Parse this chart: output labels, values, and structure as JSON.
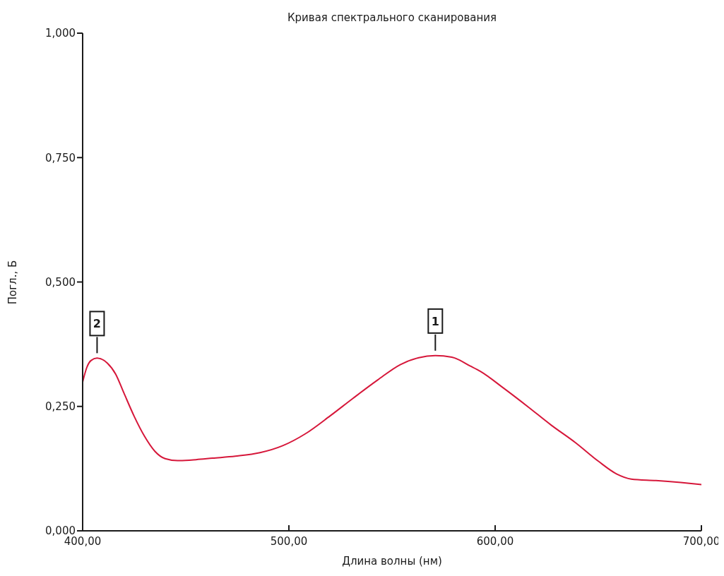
{
  "chart_data": {
    "type": "line",
    "title": "Кривая спектрального сканирования",
    "xlabel": "Длина волны (нм)",
    "ylabel": "Погл., Б",
    "x": [
      400,
      402,
      404,
      407,
      412,
      416,
      420,
      425,
      430,
      435,
      440,
      446,
      455,
      463,
      474,
      486,
      497,
      508,
      520,
      531,
      543,
      554,
      563,
      571,
      579,
      588,
      593,
      604,
      616,
      627,
      639,
      650,
      659,
      666,
      678,
      690,
      700
    ],
    "values": [
      0.299,
      0.328,
      0.342,
      0.347,
      0.337,
      0.315,
      0.277,
      0.23,
      0.19,
      0.16,
      0.145,
      0.141,
      0.143,
      0.146,
      0.15,
      0.157,
      0.171,
      0.195,
      0.231,
      0.266,
      0.303,
      0.334,
      0.348,
      0.352,
      0.349,
      0.331,
      0.32,
      0.287,
      0.249,
      0.213,
      0.177,
      0.14,
      0.114,
      0.104,
      0.101,
      0.097,
      0.093
    ],
    "color": "#d6173a",
    "marker": "none",
    "line_style": "solid",
    "xlim": [
      400,
      700
    ],
    "xticks": [
      {
        "value": 400,
        "label": "400,00"
      },
      {
        "value": 500,
        "label": "500,00"
      },
      {
        "value": 600,
        "label": "600,00"
      },
      {
        "value": 700,
        "label": "700,00"
      }
    ],
    "ylim": [
      0,
      1
    ],
    "yticks": [
      {
        "value": 0,
        "label": "0,000"
      },
      {
        "value": 0.25,
        "label": "0,250"
      },
      {
        "value": 0.5,
        "label": "0,500"
      },
      {
        "value": 0.75,
        "label": "0,750"
      },
      {
        "value": 1,
        "label": "1,000"
      }
    ],
    "annotations": [
      {
        "text": "1",
        "x": 571,
        "y": 0.352
      },
      {
        "text": "2",
        "x": 407,
        "y": 0.347
      }
    ]
  }
}
